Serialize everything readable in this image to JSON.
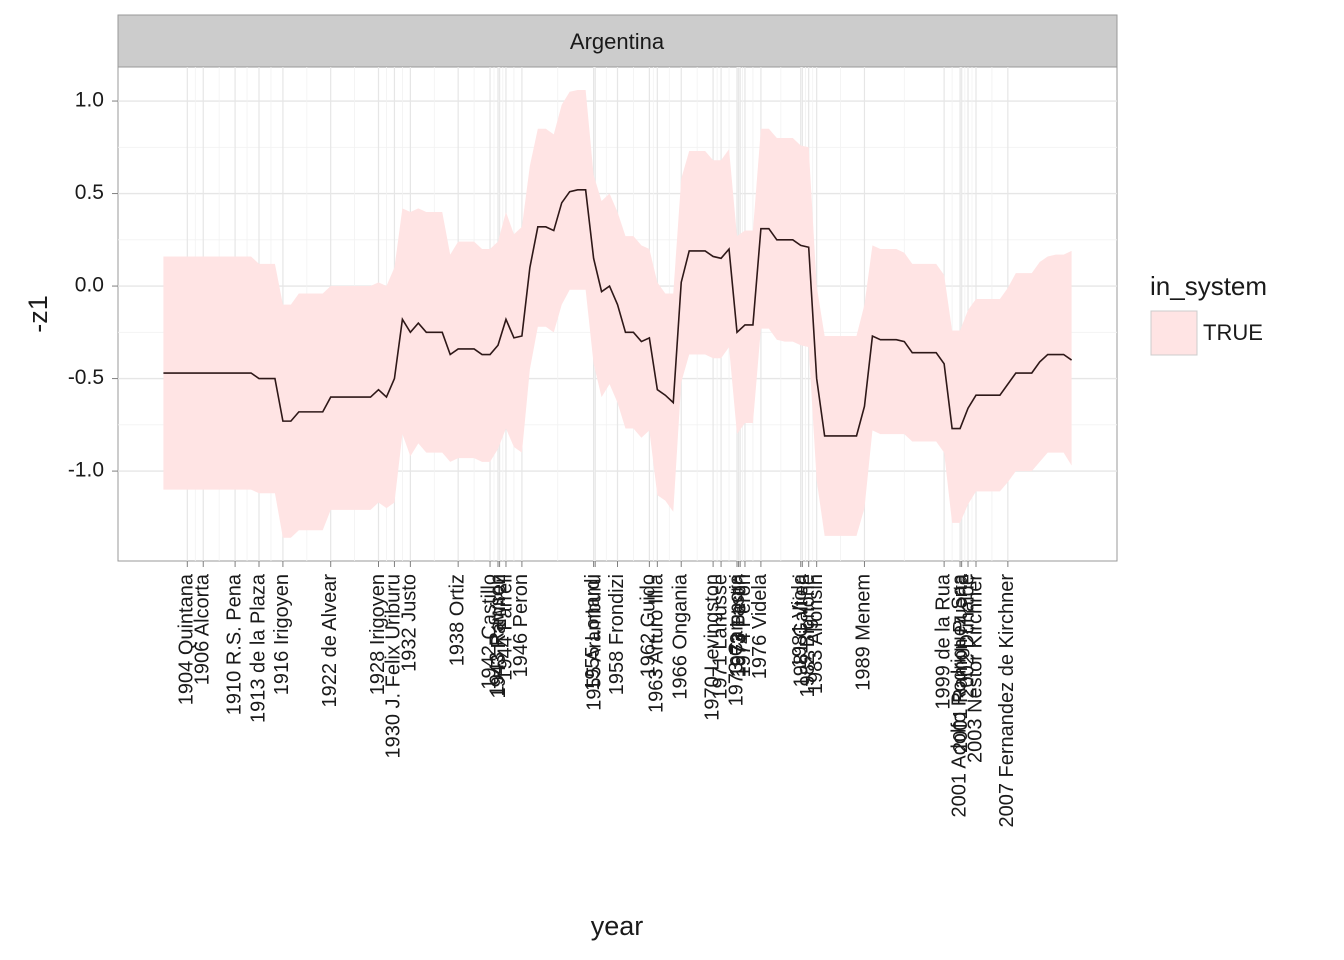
{
  "chart_data": {
    "type": "line",
    "facet_title": "Argentina",
    "xlabel": "year",
    "ylabel": "-z1",
    "legend_title": "in_system",
    "legend_position": "right",
    "grid": true,
    "xlim": [
      1895.3,
      2020.7
    ],
    "ylim": [
      -1.486,
      1.184
    ],
    "yticks": [
      {
        "value": -1,
        "label": "-1.0"
      },
      -0.5,
      {
        "value": 0,
        "label": "0.0"
      },
      0.5,
      {
        "value": 1,
        "label": "1.0"
      }
    ],
    "xticks": [
      {
        "value": 1904,
        "label": "1904 Quintana"
      },
      {
        "value": 1906,
        "label": "1906 Alcorta"
      },
      {
        "value": 1910,
        "label": "1910 R.S. Pena"
      },
      {
        "value": 1913,
        "label": "1913 de la Plaza"
      },
      {
        "value": 1916,
        "label": "1916 Irigoyen"
      },
      {
        "value": 1922,
        "label": "1922 de Alvear"
      },
      {
        "value": 1928,
        "label": "1928 Irigoyen"
      },
      {
        "value": 1930,
        "label": "1930 J. Felix Uriburu"
      },
      {
        "value": 1932,
        "label": "1932 Justo"
      },
      {
        "value": 1938,
        "label": "1938 Ortiz"
      },
      {
        "value": 1942,
        "label": "1942 Castillo"
      },
      {
        "value": 1943,
        "label": "1943 Rawson"
      },
      {
        "value": 1943.2,
        "label": "1943 Ramirez"
      },
      {
        "value": 1944,
        "label": "1944 Farrell"
      },
      {
        "value": 1946,
        "label": "1946 Peron"
      },
      {
        "value": 1955,
        "label": "1955 Lonardi"
      },
      {
        "value": 1955.2,
        "label": "1955 Aramburu"
      },
      {
        "value": 1958,
        "label": "1958 Frondizi"
      },
      {
        "value": 1962,
        "label": "1962 Guido"
      },
      {
        "value": 1963,
        "label": "1963 Arturo Illia"
      },
      {
        "value": 1966,
        "label": "1966 Ongania"
      },
      {
        "value": 1970,
        "label": "1970 Levingston"
      },
      {
        "value": 1971,
        "label": "1971 Lanusse"
      },
      {
        "value": 1973,
        "label": "1973 Campora"
      },
      {
        "value": 1973.2,
        "label": "1973 Lastiri"
      },
      {
        "value": 1973.4,
        "label": "1973 Peron"
      },
      {
        "value": 1974,
        "label": "1974 Peron"
      },
      {
        "value": 1976,
        "label": "1976 Videla"
      },
      {
        "value": 1981,
        "label": "1981 Viola"
      },
      {
        "value": 1981.2,
        "label": "1981 Galtieri"
      },
      {
        "value": 1982,
        "label": "1982 Bignone"
      },
      {
        "value": 1983,
        "label": "1983 Alfonsin"
      },
      {
        "value": 1989,
        "label": "1989 Menem"
      },
      {
        "value": 1999,
        "label": "1999 de la Rua"
      },
      {
        "value": 2001,
        "label": "2001 Adolfo Rodriguez Saa"
      },
      {
        "value": 2001.2,
        "label": "2001 Ramon Puerta"
      },
      {
        "value": 2002,
        "label": "2002 Duhalde"
      },
      {
        "value": 2003,
        "label": "2003 Nestor Kirchner"
      },
      {
        "value": 2007,
        "label": "2007 Fernandez de Kirchner"
      }
    ],
    "x": [
      1901,
      1902,
      1903,
      1904,
      1905,
      1906,
      1907,
      1908,
      1909,
      1910,
      1911,
      1912,
      1913,
      1914,
      1915,
      1916,
      1917,
      1918,
      1919,
      1920,
      1921,
      1922,
      1923,
      1924,
      1925,
      1926,
      1927,
      1928,
      1929,
      1930,
      1931,
      1932,
      1933,
      1934,
      1935,
      1936,
      1937,
      1938,
      1939,
      1940,
      1941,
      1942,
      1943,
      1944,
      1945,
      1946,
      1947,
      1948,
      1949,
      1950,
      1951,
      1952,
      1953,
      1954,
      1955,
      1956,
      1957,
      1958,
      1959,
      1960,
      1961,
      1962,
      1963,
      1964,
      1965,
      1966,
      1967,
      1968,
      1969,
      1970,
      1971,
      1972,
      1973,
      1974,
      1975,
      1976,
      1977,
      1978,
      1979,
      1980,
      1981,
      1982,
      1983,
      1984,
      1985,
      1986,
      1987,
      1988,
      1989,
      1990,
      1991,
      1992,
      1993,
      1994,
      1995,
      1996,
      1997,
      1998,
      1999,
      2000,
      2001,
      2002,
      2003,
      2004,
      2005,
      2006,
      2007,
      2008,
      2009,
      2010,
      2011,
      2012,
      2013,
      2014,
      2015
    ],
    "series": [
      {
        "name": "TRUE",
        "color": "#ffe4e4",
        "line_color": "#2e1818",
        "values": [
          -0.47,
          -0.47,
          -0.47,
          -0.47,
          -0.47,
          -0.47,
          -0.47,
          -0.47,
          -0.47,
          -0.47,
          -0.47,
          -0.47,
          -0.5,
          -0.5,
          -0.5,
          -0.73,
          -0.73,
          -0.68,
          -0.68,
          -0.68,
          -0.68,
          -0.6,
          -0.6,
          -0.6,
          -0.6,
          -0.6,
          -0.6,
          -0.56,
          -0.6,
          -0.5,
          -0.18,
          -0.25,
          -0.2,
          -0.25,
          -0.25,
          -0.25,
          -0.37,
          -0.34,
          -0.34,
          -0.34,
          -0.37,
          -0.37,
          -0.32,
          -0.18,
          -0.28,
          -0.27,
          0.1,
          0.32,
          0.32,
          0.3,
          0.45,
          0.51,
          0.52,
          0.52,
          0.15,
          -0.03,
          0.0,
          -0.1,
          -0.25,
          -0.25,
          -0.3,
          -0.28,
          -0.56,
          -0.59,
          -0.63,
          0.02,
          0.19,
          0.19,
          0.19,
          0.16,
          0.15,
          0.2,
          -0.25,
          -0.21,
          -0.21,
          0.31,
          0.31,
          0.25,
          0.25,
          0.25,
          0.22,
          0.21,
          -0.5,
          -0.81,
          -0.81,
          -0.81,
          -0.81,
          -0.81,
          -0.65,
          -0.27,
          -0.29,
          -0.29,
          -0.29,
          -0.3,
          -0.36,
          -0.36,
          -0.36,
          -0.36,
          -0.42,
          -0.77,
          -0.77,
          -0.66,
          -0.59,
          -0.59,
          -0.59,
          -0.59,
          -0.53,
          -0.47,
          -0.47,
          -0.47,
          -0.41,
          -0.37,
          -0.37,
          -0.37,
          -0.4
        ],
        "upper": [
          0.16,
          0.16,
          0.16,
          0.16,
          0.16,
          0.16,
          0.16,
          0.16,
          0.16,
          0.16,
          0.16,
          0.16,
          0.12,
          0.12,
          0.12,
          -0.1,
          -0.1,
          -0.04,
          -0.04,
          -0.04,
          -0.04,
          0.0,
          0.0,
          0.0,
          0.0,
          0.0,
          0.0,
          0.02,
          0.0,
          0.1,
          0.42,
          0.4,
          0.42,
          0.4,
          0.4,
          0.4,
          0.17,
          0.24,
          0.24,
          0.24,
          0.2,
          0.2,
          0.24,
          0.4,
          0.28,
          0.32,
          0.65,
          0.85,
          0.85,
          0.82,
          0.98,
          1.05,
          1.06,
          1.06,
          0.6,
          0.46,
          0.5,
          0.4,
          0.27,
          0.27,
          0.22,
          0.2,
          0.02,
          -0.04,
          -0.04,
          0.58,
          0.73,
          0.73,
          0.73,
          0.68,
          0.68,
          0.74,
          0.27,
          0.3,
          0.3,
          0.85,
          0.85,
          0.8,
          0.8,
          0.8,
          0.76,
          0.75,
          0.0,
          -0.27,
          -0.27,
          -0.27,
          -0.27,
          -0.27,
          -0.1,
          0.22,
          0.2,
          0.2,
          0.2,
          0.18,
          0.12,
          0.12,
          0.12,
          0.12,
          0.06,
          -0.24,
          -0.24,
          -0.13,
          -0.07,
          -0.07,
          -0.07,
          -0.07,
          -0.01,
          0.07,
          0.07,
          0.07,
          0.13,
          0.16,
          0.17,
          0.17,
          0.19
        ],
        "lower": [
          -1.1,
          -1.1,
          -1.1,
          -1.1,
          -1.1,
          -1.1,
          -1.1,
          -1.1,
          -1.1,
          -1.1,
          -1.1,
          -1.1,
          -1.12,
          -1.12,
          -1.12,
          -1.36,
          -1.36,
          -1.32,
          -1.32,
          -1.32,
          -1.32,
          -1.21,
          -1.21,
          -1.21,
          -1.21,
          -1.21,
          -1.21,
          -1.17,
          -1.2,
          -1.17,
          -0.8,
          -0.92,
          -0.85,
          -0.9,
          -0.9,
          -0.9,
          -0.95,
          -0.93,
          -0.93,
          -0.93,
          -0.95,
          -0.95,
          -0.88,
          -0.77,
          -0.87,
          -0.9,
          -0.45,
          -0.22,
          -0.22,
          -0.25,
          -0.1,
          -0.02,
          -0.02,
          -0.02,
          -0.42,
          -0.6,
          -0.53,
          -0.63,
          -0.77,
          -0.77,
          -0.82,
          -0.78,
          -1.13,
          -1.16,
          -1.22,
          -0.52,
          -0.37,
          -0.37,
          -0.37,
          -0.39,
          -0.39,
          -0.33,
          -0.8,
          -0.74,
          -0.74,
          -0.23,
          -0.23,
          -0.29,
          -0.3,
          -0.3,
          -0.32,
          -0.33,
          -1.05,
          -1.35,
          -1.35,
          -1.35,
          -1.35,
          -1.35,
          -1.2,
          -0.78,
          -0.8,
          -0.8,
          -0.8,
          -0.8,
          -0.84,
          -0.84,
          -0.84,
          -0.84,
          -0.9,
          -1.28,
          -1.28,
          -1.18,
          -1.11,
          -1.11,
          -1.11,
          -1.11,
          -1.06,
          -1.0,
          -1.0,
          -1.0,
          -0.95,
          -0.9,
          -0.9,
          -0.9,
          -0.97
        ]
      }
    ]
  }
}
